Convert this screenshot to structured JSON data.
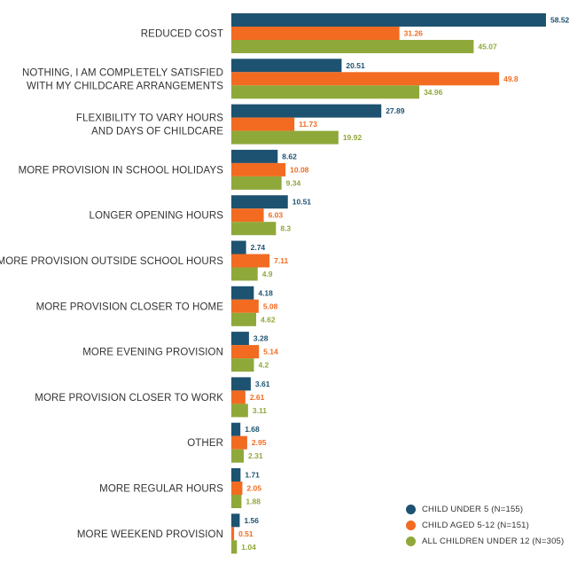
{
  "chart_data": {
    "type": "bar",
    "orientation": "horizontal",
    "categories": [
      [
        "REDUCED COST"
      ],
      [
        "NOTHING, I AM COMPLETELY SATISFIED",
        "WITH MY CHILDCARE ARRANGEMENTS"
      ],
      [
        "FLEXIBILITY TO VARY HOURS",
        "AND DAYS OF CHILDCARE"
      ],
      [
        "MORE PROVISION IN SCHOOL HOLIDAYS"
      ],
      [
        "LONGER OPENING HOURS"
      ],
      [
        "MORE PROVISION OUTSIDE SCHOOL HOURS"
      ],
      [
        "MORE PROVISION CLOSER TO HOME"
      ],
      [
        "MORE EVENING PROVISION"
      ],
      [
        "MORE PROVISION CLOSER TO WORK"
      ],
      [
        "OTHER"
      ],
      [
        "MORE REGULAR HOURS"
      ],
      [
        "MORE WEEKEND PROVISION"
      ]
    ],
    "series": [
      {
        "name": "CHILD UNDER 5 (N=155)",
        "color": "#1d5270",
        "values": [
          58.52,
          20.51,
          27.89,
          8.62,
          10.51,
          2.74,
          4.18,
          3.28,
          3.61,
          1.68,
          1.71,
          1.56
        ],
        "labels": [
          "58.52",
          "20.51",
          "27.89",
          "8.62",
          "10.51",
          "2.74",
          "4.18",
          "3.28",
          "3.61",
          "1.68",
          "1.71",
          "1.56"
        ]
      },
      {
        "name": "CHILD AGED 5-12 (N=151)",
        "color": "#f26b21",
        "values": [
          31.26,
          49.8,
          11.73,
          10.08,
          6.03,
          7.11,
          5.08,
          5.14,
          2.61,
          2.95,
          2.05,
          0.51
        ],
        "labels": [
          "31.26",
          "49.8",
          "11.73",
          "10.08",
          "6.03",
          "7.11",
          "5.08",
          "5.14",
          "2.61",
          "2.95",
          "2.05",
          "0.51"
        ]
      },
      {
        "name": "ALL CHILDREN UNDER 12 (N=305)",
        "color": "#8fa83a",
        "values": [
          45.07,
          34.96,
          19.92,
          9.34,
          8.3,
          4.9,
          4.62,
          4.2,
          3.11,
          2.31,
          1.88,
          1.04
        ],
        "labels": [
          "45.07",
          "34.96",
          "19.92",
          "9.34",
          "8.3",
          "4.9",
          "4.62",
          "4.2",
          "3.11",
          "2.31",
          "1.88",
          "1.04"
        ]
      }
    ],
    "xlim": [
      0,
      60
    ],
    "grid": false,
    "legend_position": "bottom-right"
  }
}
